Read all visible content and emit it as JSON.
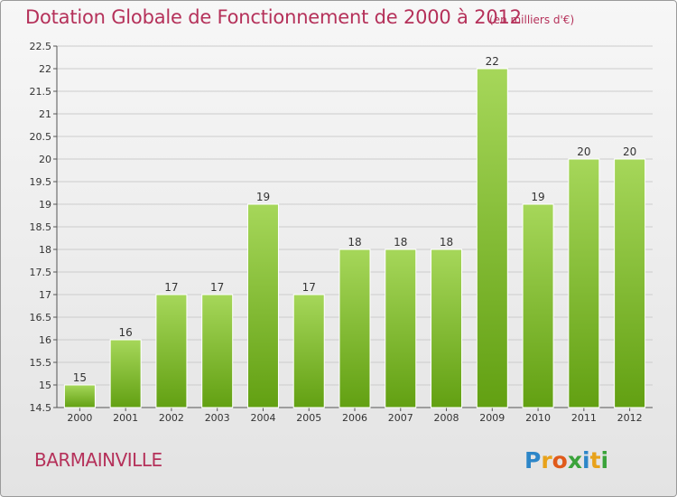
{
  "header": {
    "title": "Dotation Globale de Fonctionnement de 2000 à 2012",
    "subtitle": "(en milliers d'€)"
  },
  "footer": {
    "commune": "BARMAINVILLE",
    "logo_text": "Proxiti"
  },
  "colors": {
    "title": "#b5315a",
    "bar_light": "#a6d75a",
    "bar_dark": "#62a012",
    "grid": "#cccccc"
  },
  "chart_data": {
    "type": "bar",
    "title": "Dotation Globale de Fonctionnement de 2000 à 2012",
    "subtitle": "(en milliers d'€)",
    "categories": [
      "2000",
      "2001",
      "2002",
      "2003",
      "2004",
      "2005",
      "2006",
      "2007",
      "2008",
      "2009",
      "2010",
      "2011",
      "2012"
    ],
    "values": [
      15,
      16,
      17,
      17,
      19,
      17,
      18,
      18,
      18,
      22,
      19,
      20,
      20
    ],
    "data_labels": [
      "15",
      "16",
      "17",
      "17",
      "19",
      "17",
      "18",
      "18",
      "18",
      "22",
      "19",
      "20",
      "20"
    ],
    "yticks": [
      "14.5",
      "15",
      "15.5",
      "16",
      "16.5",
      "17",
      "17.5",
      "18",
      "18.5",
      "19",
      "19.5",
      "20",
      "20.5",
      "21",
      "21.5",
      "22",
      "22.5"
    ],
    "ylim": [
      14.5,
      22.5
    ],
    "xlabel": "",
    "ylabel": "",
    "grid": true
  }
}
